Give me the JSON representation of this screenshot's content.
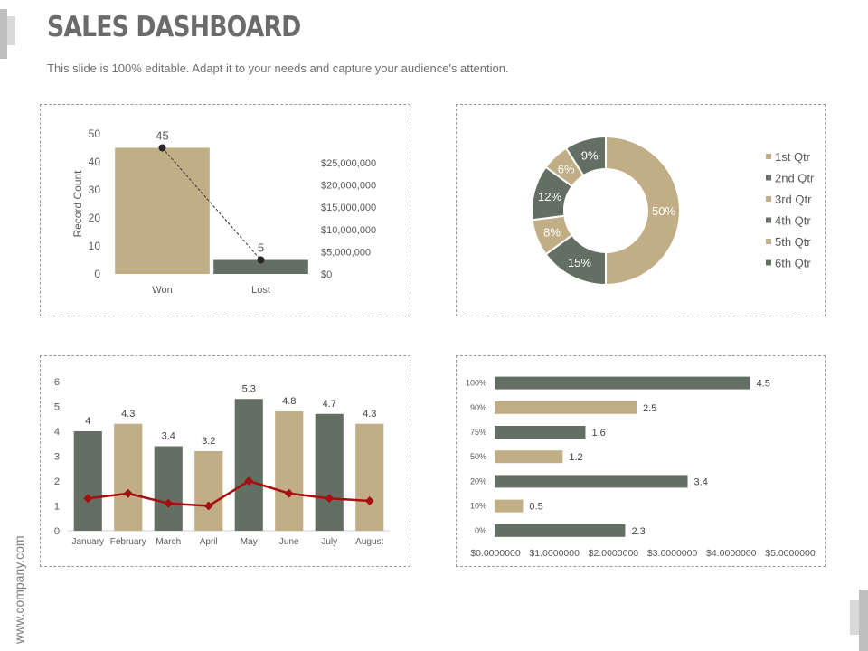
{
  "header": {
    "title": "SALES DASHBOARD",
    "subtitle": "This slide is 100% editable. Adapt it to your needs and capture your audience's attention."
  },
  "footer": {
    "url": "www.company.com"
  },
  "colors": {
    "tan": "#c2ae86",
    "green": "#636f63",
    "red": "#a50f0f",
    "axis": "#d0d0d0",
    "text": "#595959"
  },
  "chart_data": [
    {
      "id": "won-lost",
      "type": "bar",
      "categories": [
        "Won",
        "Lost"
      ],
      "series": [
        {
          "name": "Record Count",
          "values": [
            45,
            5
          ],
          "colors": [
            "#c2ae86",
            "#636f63"
          ]
        },
        {
          "name": "Trend",
          "type": "line",
          "values": [
            45,
            5
          ],
          "labels": [
            "45",
            "5"
          ]
        }
      ],
      "ylabel": "Record Count",
      "ylim": [
        0,
        50
      ],
      "yticks": [
        0,
        10,
        20,
        30,
        40,
        50
      ],
      "y2ticks": [
        "$0",
        "$5,000,000",
        "$10,000,000",
        "$15,000,000",
        "$20,000,000",
        "$25,000,000"
      ]
    },
    {
      "id": "quarters",
      "type": "pie",
      "donut": true,
      "slices": [
        {
          "label": "1st Qtr",
          "value": 50,
          "text": "50%",
          "color": "#c2ae86"
        },
        {
          "label": "2nd Qtr",
          "value": 15,
          "text": "15%",
          "color": "#636f63"
        },
        {
          "label": "3rd Qtr",
          "value": 8,
          "text": "8%",
          "color": "#c2ae86"
        },
        {
          "label": "4th Qtr",
          "value": 12,
          "text": "12%",
          "color": "#636f63"
        },
        {
          "label": "5th Qtr",
          "value": 6,
          "text": "6%",
          "color": "#c2ae86"
        },
        {
          "label": "6th Qtr",
          "value": 9,
          "text": "9%",
          "color": "#636f63"
        }
      ],
      "legend": "right"
    },
    {
      "id": "monthly",
      "type": "bar",
      "categories": [
        "January",
        "February",
        "March",
        "April",
        "May",
        "June",
        "July",
        "August"
      ],
      "series": [
        {
          "name": "Value",
          "values": [
            4,
            4.3,
            3.4,
            3.2,
            5.3,
            4.8,
            4.7,
            4.3
          ],
          "labels": [
            "4",
            "4.3",
            "3.4",
            "3.2",
            "5.3",
            "4.8",
            "4.7",
            "4.3"
          ],
          "colors": [
            "#636f63",
            "#c2ae86",
            "#636f63",
            "#c2ae86",
            "#636f63",
            "#c2ae86",
            "#636f63",
            "#c2ae86"
          ]
        },
        {
          "name": "Trend",
          "type": "line",
          "values": [
            1.3,
            1.5,
            1.1,
            1.0,
            2.0,
            1.5,
            1.3,
            1.2
          ],
          "color": "#a50f0f"
        }
      ],
      "ylim": [
        0,
        6
      ],
      "yticks": [
        0,
        1,
        2,
        3,
        4,
        5,
        6
      ]
    },
    {
      "id": "horizontal",
      "type": "bar",
      "orientation": "horizontal",
      "categories": [
        "100%",
        "90%",
        "75%",
        "50%",
        "20%",
        "10%",
        "0%"
      ],
      "values": [
        4.5,
        2.5,
        1.6,
        1.2,
        3.4,
        0.5,
        2.3
      ],
      "labels": [
        "4.5",
        "2.5",
        "1.6",
        "1.2",
        "3.4",
        "0.5",
        "2.3"
      ],
      "colors": [
        "#636f63",
        "#c2ae86",
        "#636f63",
        "#c2ae86",
        "#636f63",
        "#c2ae86",
        "#636f63"
      ],
      "xlim": [
        0,
        5
      ],
      "xticks": [
        "$0.0000000",
        "$1.0000000",
        "$2.0000000",
        "$3.0000000",
        "$4.0000000",
        "$5.0000000"
      ]
    }
  ]
}
